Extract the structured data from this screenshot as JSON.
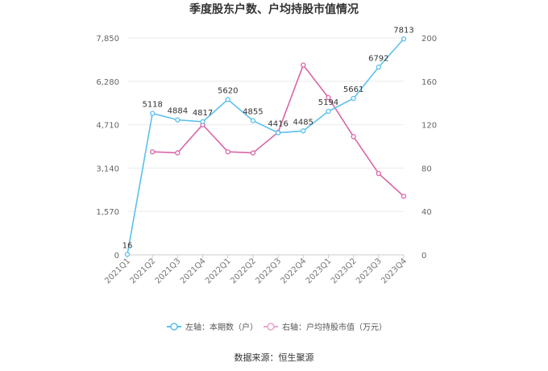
{
  "chart_data": {
    "type": "line",
    "title": "季度股东户数、户均持股市值情况",
    "categories": [
      "2021Q1",
      "2021Q2",
      "2021Q3",
      "2021Q4",
      "2022Q1",
      "2022Q2",
      "2022Q3",
      "2022Q4",
      "2023Q1",
      "2023Q2",
      "2023Q3",
      "2023Q4"
    ],
    "series": [
      {
        "name": "左轴：本期数（户）",
        "axis": "left",
        "color": "#5bc0eb",
        "values": [
          16,
          5118,
          4884,
          4817,
          5620,
          4855,
          4416,
          4485,
          5194,
          5661,
          6792,
          7813
        ],
        "labels": [
          "16",
          "5118",
          "4884",
          "4817",
          "5620",
          "4855",
          "4416",
          "4485",
          "5194",
          "5661",
          "6792",
          "7813"
        ]
      },
      {
        "name": "右轴：户均持股市值（万元）",
        "axis": "right",
        "color": "#d966a8",
        "values": [
          null,
          95,
          94,
          120,
          95,
          94,
          113,
          175,
          145,
          109,
          75,
          54
        ]
      }
    ],
    "left_axis": {
      "ticks": [
        "0",
        "1,570",
        "3,140",
        "4,710",
        "6,280",
        "7,850"
      ],
      "min": 0,
      "max": 7850
    },
    "right_axis": {
      "ticks": [
        "0",
        "40",
        "80",
        "120",
        "160",
        "200"
      ],
      "min": 0,
      "max": 200
    },
    "grid": true,
    "legend_position": "bottom"
  },
  "source": "数据来源：恒生聚源"
}
